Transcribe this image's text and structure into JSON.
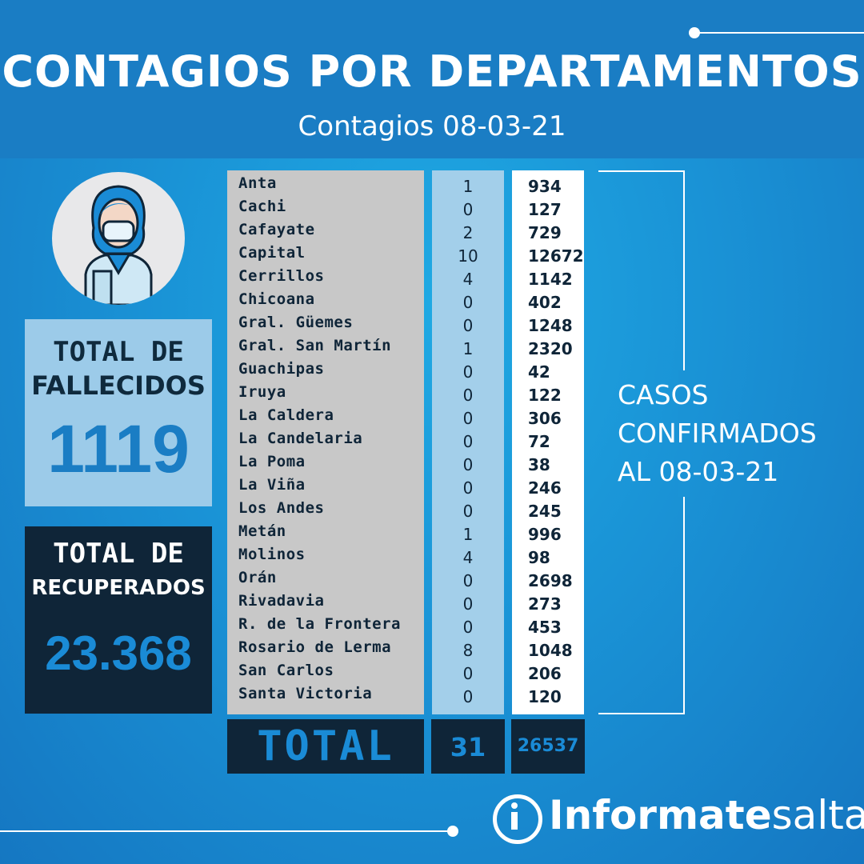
{
  "header": {
    "title": "CONTAGIOS POR DEPARTAMENTOS",
    "subtitle": "Contagios 08-03-21"
  },
  "fallecidos": {
    "label_line1": "TOTAL DE",
    "label_line2": "FALLECIDOS",
    "value": "1119"
  },
  "recuperados": {
    "label_line1": "TOTAL DE",
    "label_line2": "RECUPERADOS",
    "value": "23.368"
  },
  "table": {
    "rows": [
      {
        "name": "Anta",
        "day": "1",
        "total": "934"
      },
      {
        "name": "Cachi",
        "day": "0",
        "total": "127"
      },
      {
        "name": "Cafayate",
        "day": "2",
        "total": "729"
      },
      {
        "name": "Capital",
        "day": "10",
        "total": "12672"
      },
      {
        "name": "Cerrillos",
        "day": "4",
        "total": "1142"
      },
      {
        "name": "Chicoana",
        "day": "0",
        "total": "402"
      },
      {
        "name": "Gral. Güemes",
        "day": "0",
        "total": "1248"
      },
      {
        "name": "Gral. San Martín",
        "day": "1",
        "total": "2320"
      },
      {
        "name": "Guachipas",
        "day": "0",
        "total": "42"
      },
      {
        "name": "Iruya",
        "day": "0",
        "total": "122"
      },
      {
        "name": "La Caldera",
        "day": "0",
        "total": "306"
      },
      {
        "name": "La Candelaria",
        "day": "0",
        "total": "72"
      },
      {
        "name": "La Poma",
        "day": "0",
        "total": "38"
      },
      {
        "name": "La Viña",
        "day": "0",
        "total": "246"
      },
      {
        "name": "Los Andes",
        "day": "0",
        "total": "245"
      },
      {
        "name": "Metán",
        "day": "1",
        "total": "996"
      },
      {
        "name": "Molinos",
        "day": "4",
        "total": "98"
      },
      {
        "name": "Orán",
        "day": "0",
        "total": "2698"
      },
      {
        "name": "Rivadavia",
        "day": "0",
        "total": "273"
      },
      {
        "name": "R. de la Frontera",
        "day": "0",
        "total": "453"
      },
      {
        "name": "Rosario de Lerma",
        "day": "8",
        "total": "1048"
      },
      {
        "name": "San Carlos",
        "day": "0",
        "total": "206"
      },
      {
        "name": "Santa Victoria",
        "day": "0",
        "total": "120"
      }
    ],
    "total_label": "TOTAL",
    "total_day": "31",
    "total_all": "26537"
  },
  "casos": {
    "line1": "CASOS",
    "line2": "CONFIRMADOS",
    "line3": "AL 08-03-21"
  },
  "logo": {
    "bold": "Informate",
    "light": "salta",
    "icon": "info-i-icon"
  },
  "colors": {
    "accent": "#1a7dc4",
    "dark": "#0f2538",
    "light_blue": "#9ccbe9"
  }
}
